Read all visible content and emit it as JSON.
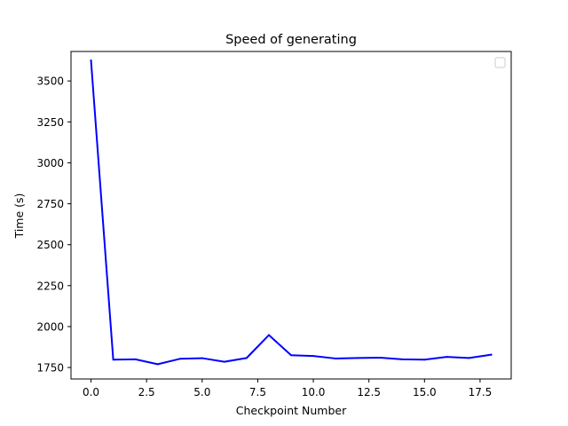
{
  "chart_data": {
    "type": "line",
    "title": "Speed of generating",
    "xlabel": "Checkpoint Number",
    "ylabel": "Time (s)",
    "xlim": [
      -0.9,
      18.9
    ],
    "ylim": [
      1680,
      3680
    ],
    "x_ticks": [
      0.0,
      2.5,
      5.0,
      7.5,
      10.0,
      12.5,
      15.0,
      17.5
    ],
    "x_tick_labels": [
      "0.0",
      "2.5",
      "5.0",
      "7.5",
      "10.0",
      "12.5",
      "15.0",
      "17.5"
    ],
    "y_ticks": [
      1750,
      2000,
      2250,
      2500,
      2750,
      3000,
      3250,
      3500
    ],
    "y_tick_labels": [
      "1750",
      "2000",
      "2250",
      "2500",
      "2750",
      "3000",
      "3250",
      "3500"
    ],
    "grid": false,
    "legend": {
      "placement": "top-right",
      "entries": []
    },
    "series": [
      {
        "color": "#0000ff",
        "x": [
          0,
          1,
          2,
          3,
          4,
          5,
          6,
          7,
          8,
          9,
          10,
          11,
          12,
          13,
          14,
          15,
          16,
          17,
          18
        ],
        "y": [
          3625,
          1798,
          1800,
          1770,
          1803,
          1807,
          1785,
          1808,
          1948,
          1825,
          1820,
          1805,
          1808,
          1810,
          1800,
          1798,
          1815,
          1808,
          1828
        ]
      }
    ]
  }
}
